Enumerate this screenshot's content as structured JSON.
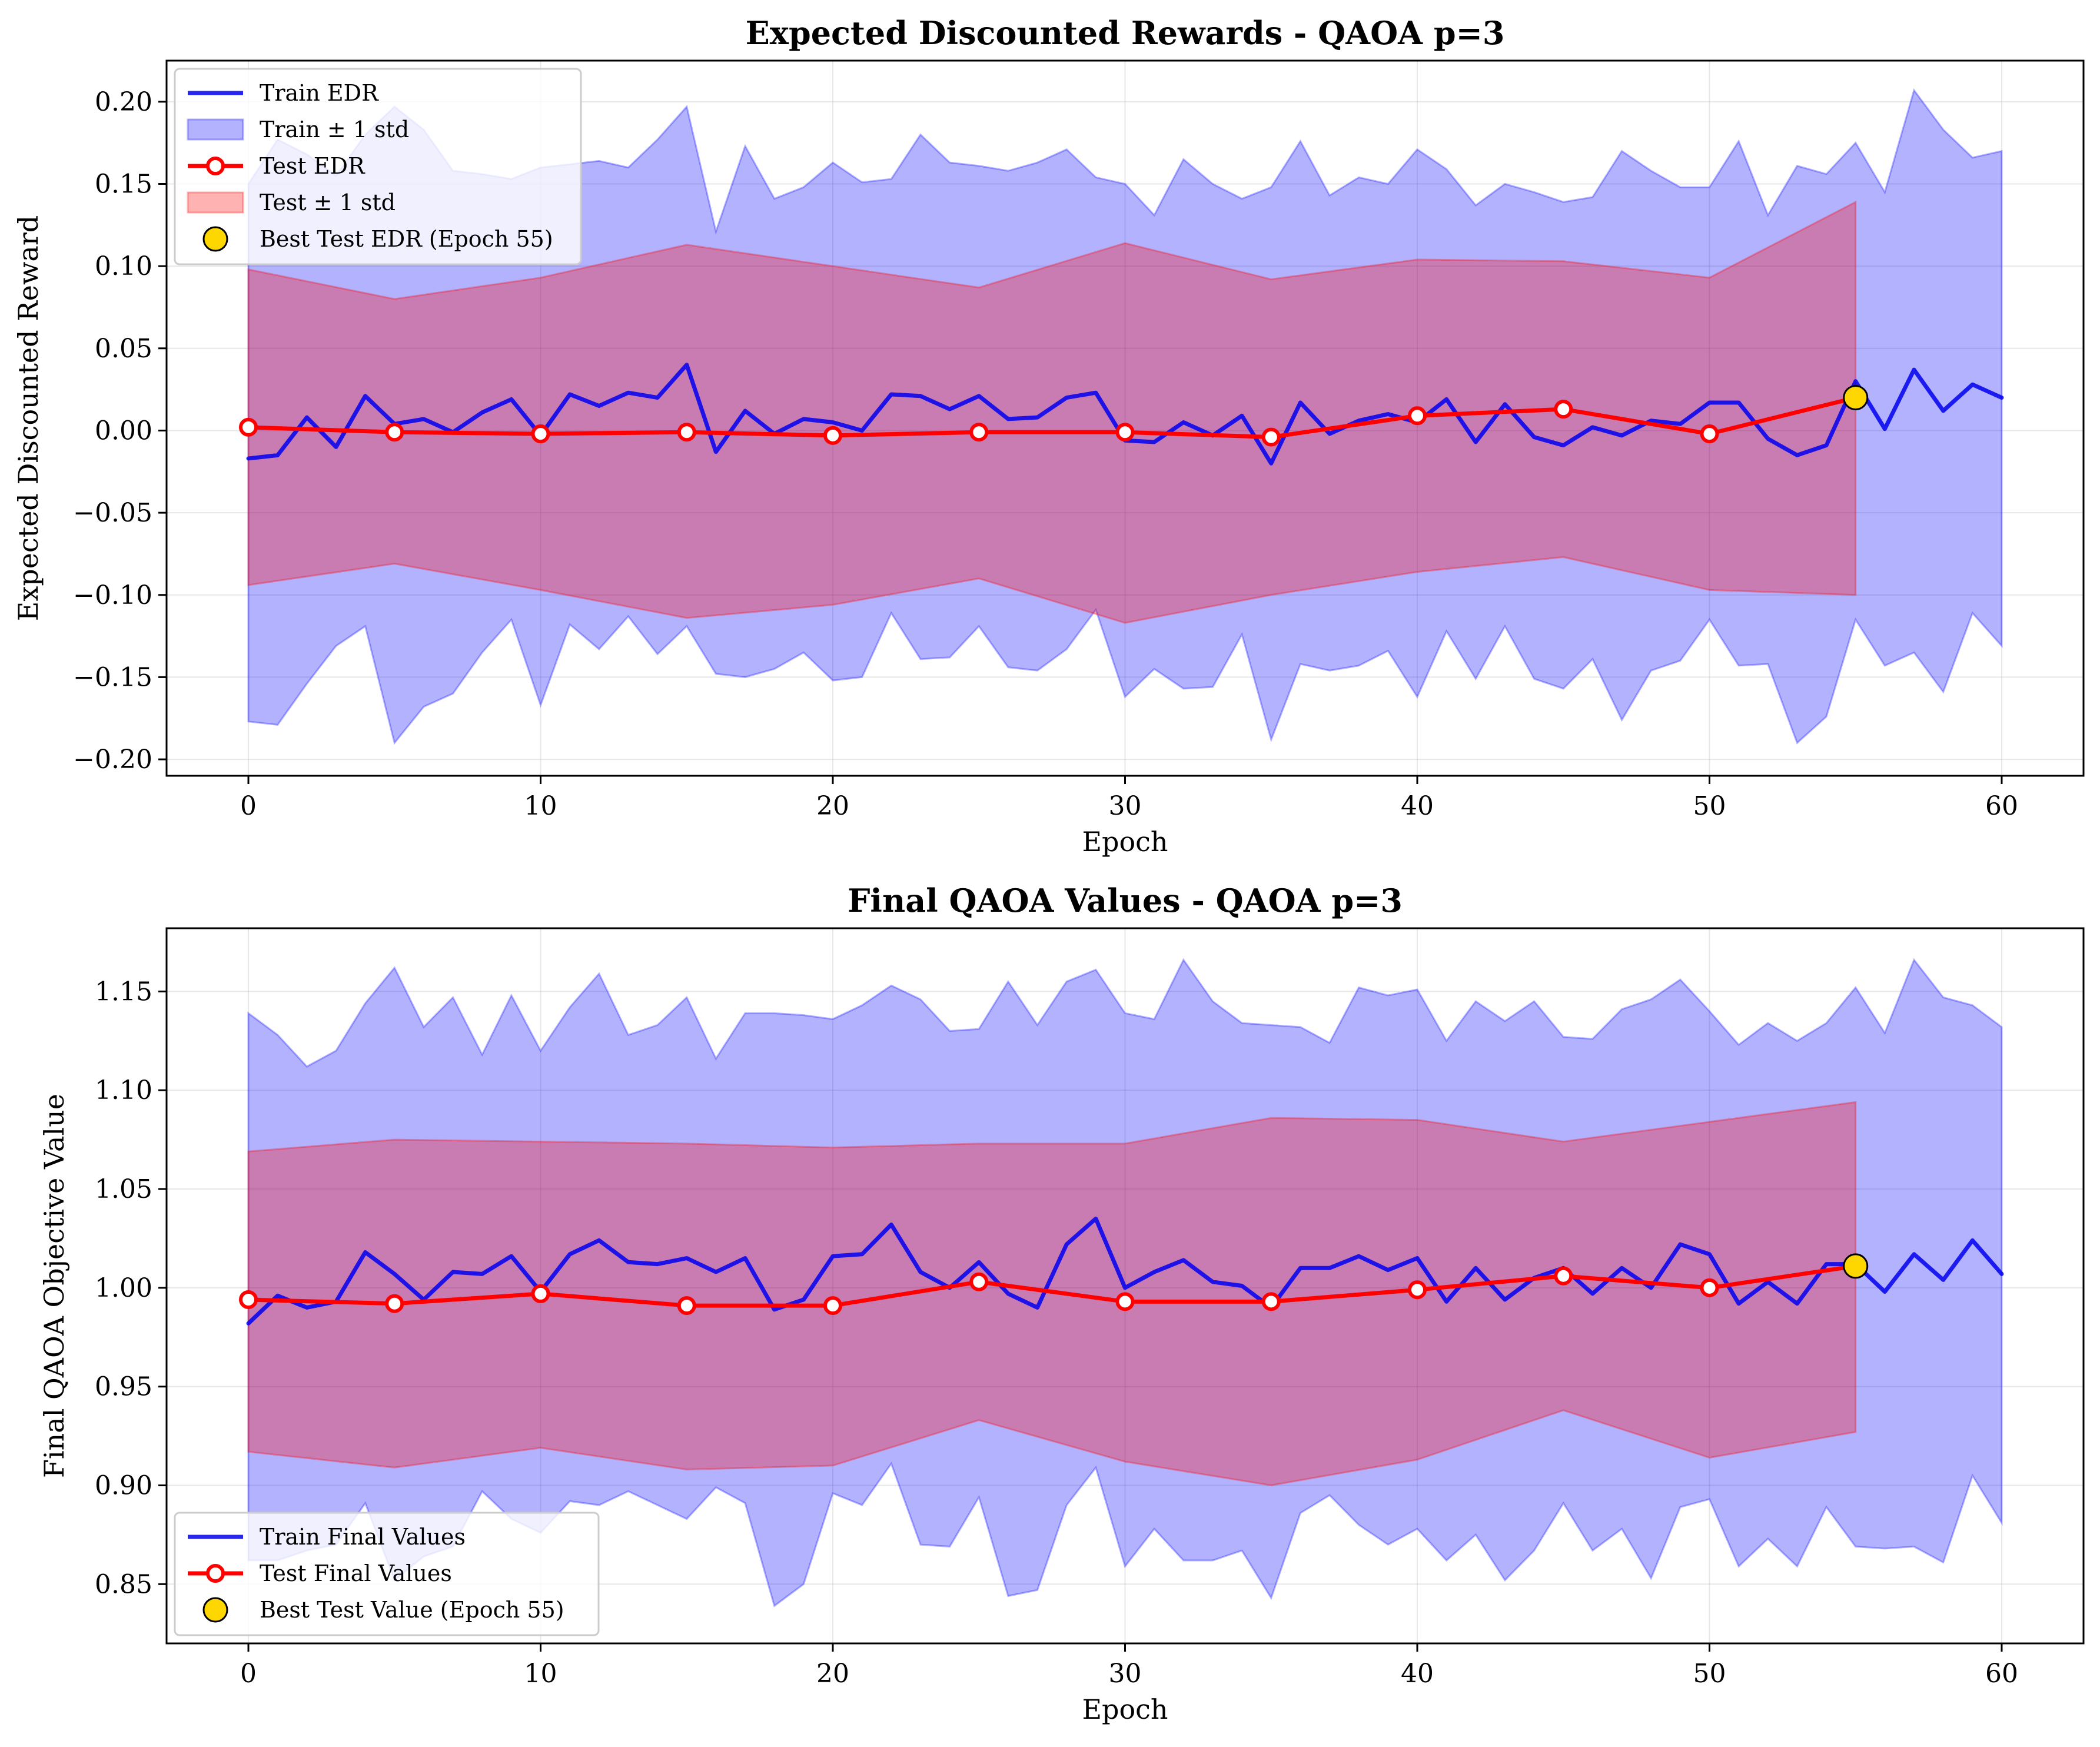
{
  "chart_data": [
    {
      "type": "line",
      "title": "Expected Discounted Rewards - QAOA p=3",
      "xlabel": "Epoch",
      "ylabel": "Expected Discounted Reward",
      "xlim": [
        -2.8,
        62.8
      ],
      "ylim": [
        -0.21,
        0.225
      ],
      "xticks": [
        0,
        10,
        20,
        30,
        40,
        50,
        60
      ],
      "yticks": [
        -0.2,
        -0.15,
        -0.1,
        -0.05,
        0.0,
        0.05,
        0.1,
        0.15,
        0.2
      ],
      "ytick_labels": [
        "−0.20",
        "−0.15",
        "−0.10",
        "−0.05",
        "0.00",
        "0.05",
        "0.10",
        "0.15",
        "0.20"
      ],
      "grid": true,
      "legend_position": "upper-left",
      "series": [
        {
          "name": "Train EDR",
          "kind": "line",
          "color": "#0000ee",
          "x": [
            0,
            1,
            2,
            3,
            4,
            5,
            6,
            7,
            8,
            9,
            10,
            11,
            12,
            13,
            14,
            15,
            16,
            17,
            18,
            19,
            20,
            21,
            22,
            23,
            24,
            25,
            26,
            27,
            28,
            29,
            30,
            31,
            32,
            33,
            34,
            35,
            36,
            37,
            38,
            39,
            40,
            41,
            42,
            43,
            44,
            45,
            46,
            47,
            48,
            49,
            50,
            51,
            52,
            53,
            54,
            55,
            56,
            57,
            58,
            59,
            60
          ],
          "y": [
            -0.017,
            -0.015,
            0.008,
            -0.01,
            0.021,
            0.004,
            0.007,
            -0.001,
            0.011,
            0.019,
            -0.003,
            0.022,
            0.015,
            0.023,
            0.02,
            0.04,
            -0.013,
            0.012,
            -0.002,
            0.007,
            0.005,
            0.0,
            0.022,
            0.021,
            0.013,
            0.021,
            0.007,
            0.008,
            0.02,
            0.023,
            -0.006,
            -0.007,
            0.005,
            -0.003,
            0.009,
            -0.02,
            0.017,
            -0.002,
            0.006,
            0.01,
            0.005,
            0.019,
            -0.007,
            0.016,
            -0.004,
            -0.009,
            0.002,
            -0.003,
            0.006,
            0.004,
            0.017,
            0.017,
            -0.005,
            -0.015,
            -0.009,
            0.03,
            0.001,
            0.037,
            0.012,
            0.028,
            0.02
          ]
        },
        {
          "name": "Train ± 1 std",
          "kind": "band",
          "color": "#0000ff",
          "x": [
            0,
            1,
            2,
            3,
            4,
            5,
            6,
            7,
            8,
            9,
            10,
            11,
            12,
            13,
            14,
            15,
            16,
            17,
            18,
            19,
            20,
            21,
            22,
            23,
            24,
            25,
            26,
            27,
            28,
            29,
            30,
            31,
            32,
            33,
            34,
            35,
            36,
            37,
            38,
            39,
            40,
            41,
            42,
            43,
            44,
            45,
            46,
            47,
            48,
            49,
            50,
            51,
            52,
            53,
            54,
            55,
            56,
            57,
            58,
            59,
            60
          ],
          "upper": [
            0.15,
            0.177,
            0.168,
            0.155,
            0.18,
            0.197,
            0.183,
            0.158,
            0.156,
            0.153,
            0.16,
            0.162,
            0.164,
            0.16,
            0.177,
            0.197,
            0.121,
            0.173,
            0.141,
            0.148,
            0.163,
            0.151,
            0.153,
            0.18,
            0.163,
            0.161,
            0.158,
            0.163,
            0.171,
            0.154,
            0.15,
            0.131,
            0.165,
            0.15,
            0.141,
            0.148,
            0.176,
            0.143,
            0.154,
            0.15,
            0.171,
            0.159,
            0.137,
            0.15,
            0.145,
            0.139,
            0.142,
            0.17,
            0.158,
            0.148,
            0.148,
            0.176,
            0.131,
            0.161,
            0.156,
            0.175,
            0.145,
            0.207,
            0.183,
            0.166,
            0.17
          ],
          "lower": [
            -0.177,
            -0.179,
            -0.154,
            -0.131,
            -0.119,
            -0.19,
            -0.168,
            -0.16,
            -0.135,
            -0.115,
            -0.167,
            -0.118,
            -0.133,
            -0.113,
            -0.136,
            -0.119,
            -0.148,
            -0.15,
            -0.145,
            -0.135,
            -0.152,
            -0.15,
            -0.111,
            -0.139,
            -0.138,
            -0.119,
            -0.144,
            -0.146,
            -0.133,
            -0.109,
            -0.162,
            -0.145,
            -0.157,
            -0.156,
            -0.124,
            -0.188,
            -0.142,
            -0.146,
            -0.143,
            -0.134,
            -0.162,
            -0.122,
            -0.151,
            -0.119,
            -0.151,
            -0.157,
            -0.139,
            -0.176,
            -0.146,
            -0.14,
            -0.115,
            -0.143,
            -0.142,
            -0.19,
            -0.174,
            -0.115,
            -0.143,
            -0.135,
            -0.159,
            -0.111,
            -0.131
          ]
        },
        {
          "name": "Test EDR",
          "kind": "line-marker",
          "color": "#ff0000",
          "x": [
            0,
            5,
            10,
            15,
            20,
            25,
            30,
            35,
            40,
            45,
            50,
            55
          ],
          "y": [
            0.002,
            -0.001,
            -0.002,
            -0.001,
            -0.003,
            -0.001,
            -0.001,
            -0.004,
            0.009,
            0.013,
            -0.002,
            0.02
          ]
        },
        {
          "name": "Test ± 1 std",
          "kind": "band",
          "color": "#ff0000",
          "x": [
            0,
            5,
            10,
            15,
            20,
            25,
            30,
            35,
            40,
            45,
            50,
            55
          ],
          "upper": [
            0.098,
            0.08,
            0.093,
            0.113,
            0.1,
            0.087,
            0.114,
            0.092,
            0.104,
            0.103,
            0.093,
            0.139
          ],
          "lower": [
            -0.094,
            -0.081,
            -0.097,
            -0.114,
            -0.106,
            -0.09,
            -0.117,
            -0.1,
            -0.086,
            -0.077,
            -0.097,
            -0.1
          ]
        },
        {
          "name": "Best Test EDR (Epoch 55)",
          "kind": "point",
          "color": "#ffd700",
          "x": [
            55
          ],
          "y": [
            0.02
          ]
        }
      ]
    },
    {
      "type": "line",
      "title": "Final QAOA Values - QAOA p=3",
      "xlabel": "Epoch",
      "ylabel": "Final QAOA Objective Value",
      "xlim": [
        -2.8,
        62.8
      ],
      "ylim": [
        0.82,
        1.182
      ],
      "xticks": [
        0,
        10,
        20,
        30,
        40,
        50,
        60
      ],
      "yticks": [
        0.85,
        0.9,
        0.95,
        1.0,
        1.05,
        1.1,
        1.15
      ],
      "ytick_labels": [
        "0.85",
        "0.90",
        "0.95",
        "1.00",
        "1.05",
        "1.10",
        "1.15"
      ],
      "grid": true,
      "legend_position": "lower-left",
      "series": [
        {
          "name": "Train Final Values",
          "kind": "line",
          "color": "#0000ee",
          "x": [
            0,
            1,
            2,
            3,
            4,
            5,
            6,
            7,
            8,
            9,
            10,
            11,
            12,
            13,
            14,
            15,
            16,
            17,
            18,
            19,
            20,
            21,
            22,
            23,
            24,
            25,
            26,
            27,
            28,
            29,
            30,
            31,
            32,
            33,
            34,
            35,
            36,
            37,
            38,
            39,
            40,
            41,
            42,
            43,
            44,
            45,
            46,
            47,
            48,
            49,
            50,
            51,
            52,
            53,
            54,
            55,
            56,
            57,
            58,
            59,
            60
          ],
          "y": [
            0.982,
            0.996,
            0.99,
            0.993,
            1.018,
            1.007,
            0.994,
            1.008,
            1.007,
            1.016,
            0.998,
            1.017,
            1.024,
            1.013,
            1.012,
            1.015,
            1.008,
            1.015,
            0.989,
            0.994,
            1.016,
            1.017,
            1.032,
            1.008,
            1.0,
            1.013,
            0.997,
            0.99,
            1.022,
            1.035,
            1.0,
            1.008,
            1.014,
            1.003,
            1.001,
            0.99,
            1.01,
            1.01,
            1.016,
            1.009,
            1.015,
            0.993,
            1.01,
            0.994,
            1.005,
            1.01,
            0.997,
            1.01,
            1.0,
            1.022,
            1.017,
            0.992,
            1.003,
            0.992,
            1.012,
            1.012,
            0.998,
            1.017,
            1.004,
            1.024,
            1.007
          ]
        },
        {
          "name": "",
          "kind": "band",
          "color": "#0000ff",
          "x": [
            0,
            1,
            2,
            3,
            4,
            5,
            6,
            7,
            8,
            9,
            10,
            11,
            12,
            13,
            14,
            15,
            16,
            17,
            18,
            19,
            20,
            21,
            22,
            23,
            24,
            25,
            26,
            27,
            28,
            29,
            30,
            31,
            32,
            33,
            34,
            35,
            36,
            37,
            38,
            39,
            40,
            41,
            42,
            43,
            44,
            45,
            46,
            47,
            48,
            49,
            50,
            51,
            52,
            53,
            54,
            55,
            56,
            57,
            58,
            59,
            60
          ],
          "upper": [
            1.139,
            1.128,
            1.112,
            1.12,
            1.144,
            1.162,
            1.132,
            1.147,
            1.118,
            1.148,
            1.12,
            1.142,
            1.159,
            1.128,
            1.133,
            1.147,
            1.116,
            1.139,
            1.139,
            1.138,
            1.136,
            1.143,
            1.153,
            1.146,
            1.13,
            1.131,
            1.155,
            1.133,
            1.155,
            1.161,
            1.139,
            1.136,
            1.166,
            1.145,
            1.134,
            1.133,
            1.132,
            1.124,
            1.152,
            1.148,
            1.151,
            1.125,
            1.145,
            1.135,
            1.145,
            1.127,
            1.126,
            1.141,
            1.146,
            1.156,
            1.14,
            1.123,
            1.134,
            1.125,
            1.134,
            1.152,
            1.129,
            1.166,
            1.147,
            1.143,
            1.132
          ],
          "lower": [
            0.862,
            0.862,
            0.867,
            0.87,
            0.891,
            0.852,
            0.864,
            0.869,
            0.897,
            0.883,
            0.876,
            0.892,
            0.89,
            0.897,
            0.89,
            0.883,
            0.899,
            0.891,
            0.839,
            0.85,
            0.896,
            0.89,
            0.911,
            0.87,
            0.869,
            0.894,
            0.844,
            0.847,
            0.89,
            0.909,
            0.859,
            0.878,
            0.862,
            0.862,
            0.867,
            0.843,
            0.886,
            0.895,
            0.88,
            0.87,
            0.878,
            0.862,
            0.875,
            0.852,
            0.867,
            0.891,
            0.867,
            0.878,
            0.853,
            0.889,
            0.893,
            0.859,
            0.873,
            0.859,
            0.889,
            0.869,
            0.868,
            0.869,
            0.861,
            0.905,
            0.881
          ]
        },
        {
          "name": "Test Final Values",
          "kind": "line-marker",
          "color": "#ff0000",
          "x": [
            0,
            5,
            10,
            15,
            20,
            25,
            30,
            35,
            40,
            45,
            50,
            55
          ],
          "y": [
            0.994,
            0.992,
            0.997,
            0.991,
            0.991,
            1.003,
            0.993,
            0.993,
            0.999,
            1.006,
            1.0,
            1.011
          ]
        },
        {
          "name": "",
          "kind": "band",
          "color": "#ff0000",
          "x": [
            0,
            5,
            10,
            15,
            20,
            25,
            30,
            35,
            40,
            45,
            50,
            55
          ],
          "upper": [
            1.069,
            1.075,
            1.074,
            1.073,
            1.071,
            1.073,
            1.073,
            1.086,
            1.085,
            1.074,
            1.084,
            1.094
          ],
          "lower": [
            0.917,
            0.909,
            0.919,
            0.908,
            0.91,
            0.933,
            0.912,
            0.9,
            0.913,
            0.938,
            0.914,
            0.927
          ]
        },
        {
          "name": "Best Test Value (Epoch 55)",
          "kind": "point",
          "color": "#ffd700",
          "x": [
            55
          ],
          "y": [
            1.011
          ]
        }
      ]
    }
  ]
}
